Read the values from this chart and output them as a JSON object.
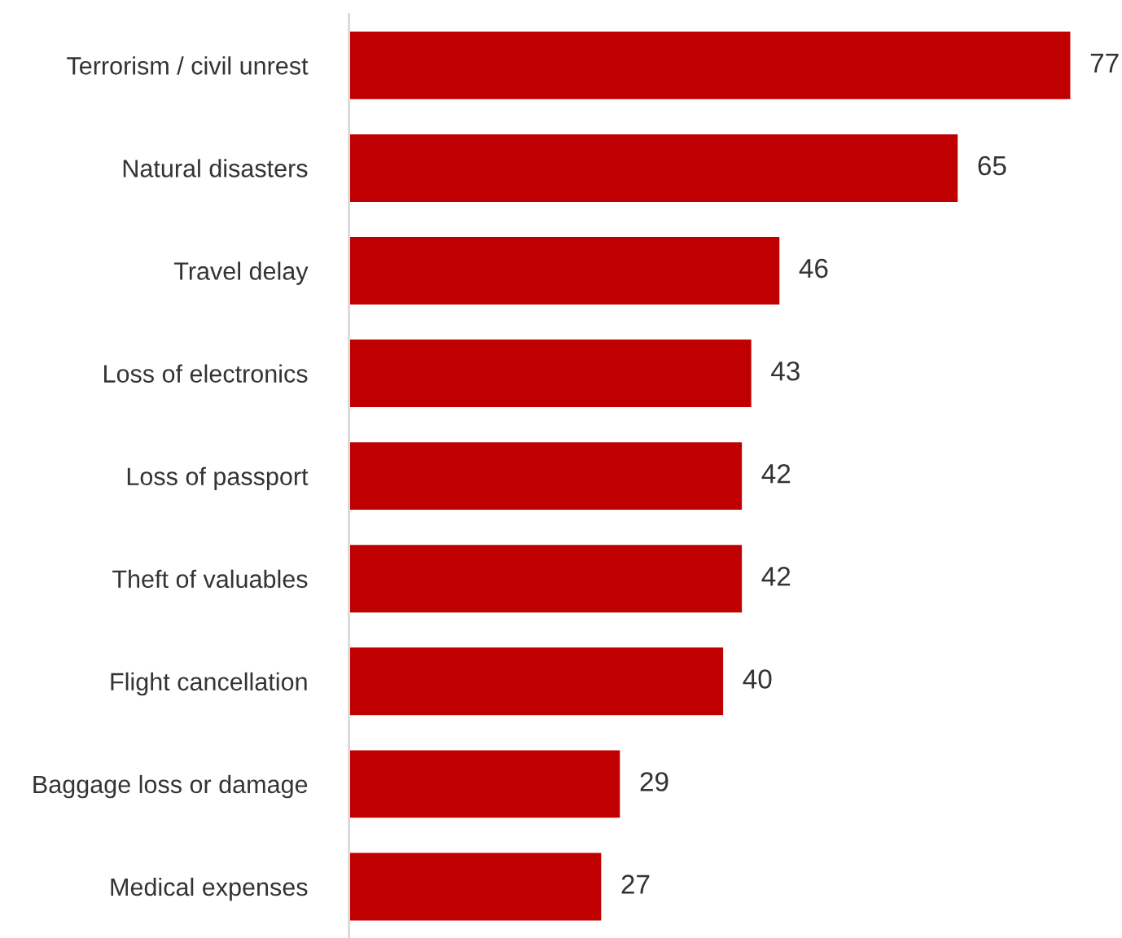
{
  "chart_data": {
    "type": "bar",
    "orientation": "horizontal",
    "categories": [
      "Terrorism / civil unrest",
      "Natural disasters",
      "Travel delay",
      "Loss of electronics",
      "Loss of passport",
      "Theft of valuables",
      "Flight cancellation",
      "Baggage loss or damage",
      "Medical expenses"
    ],
    "values": [
      77,
      65,
      46,
      43,
      42,
      42,
      40,
      29,
      27
    ],
    "color": "#c00000",
    "data_labels": true,
    "tick_labels": "y",
    "grid": false,
    "legend": false
  }
}
